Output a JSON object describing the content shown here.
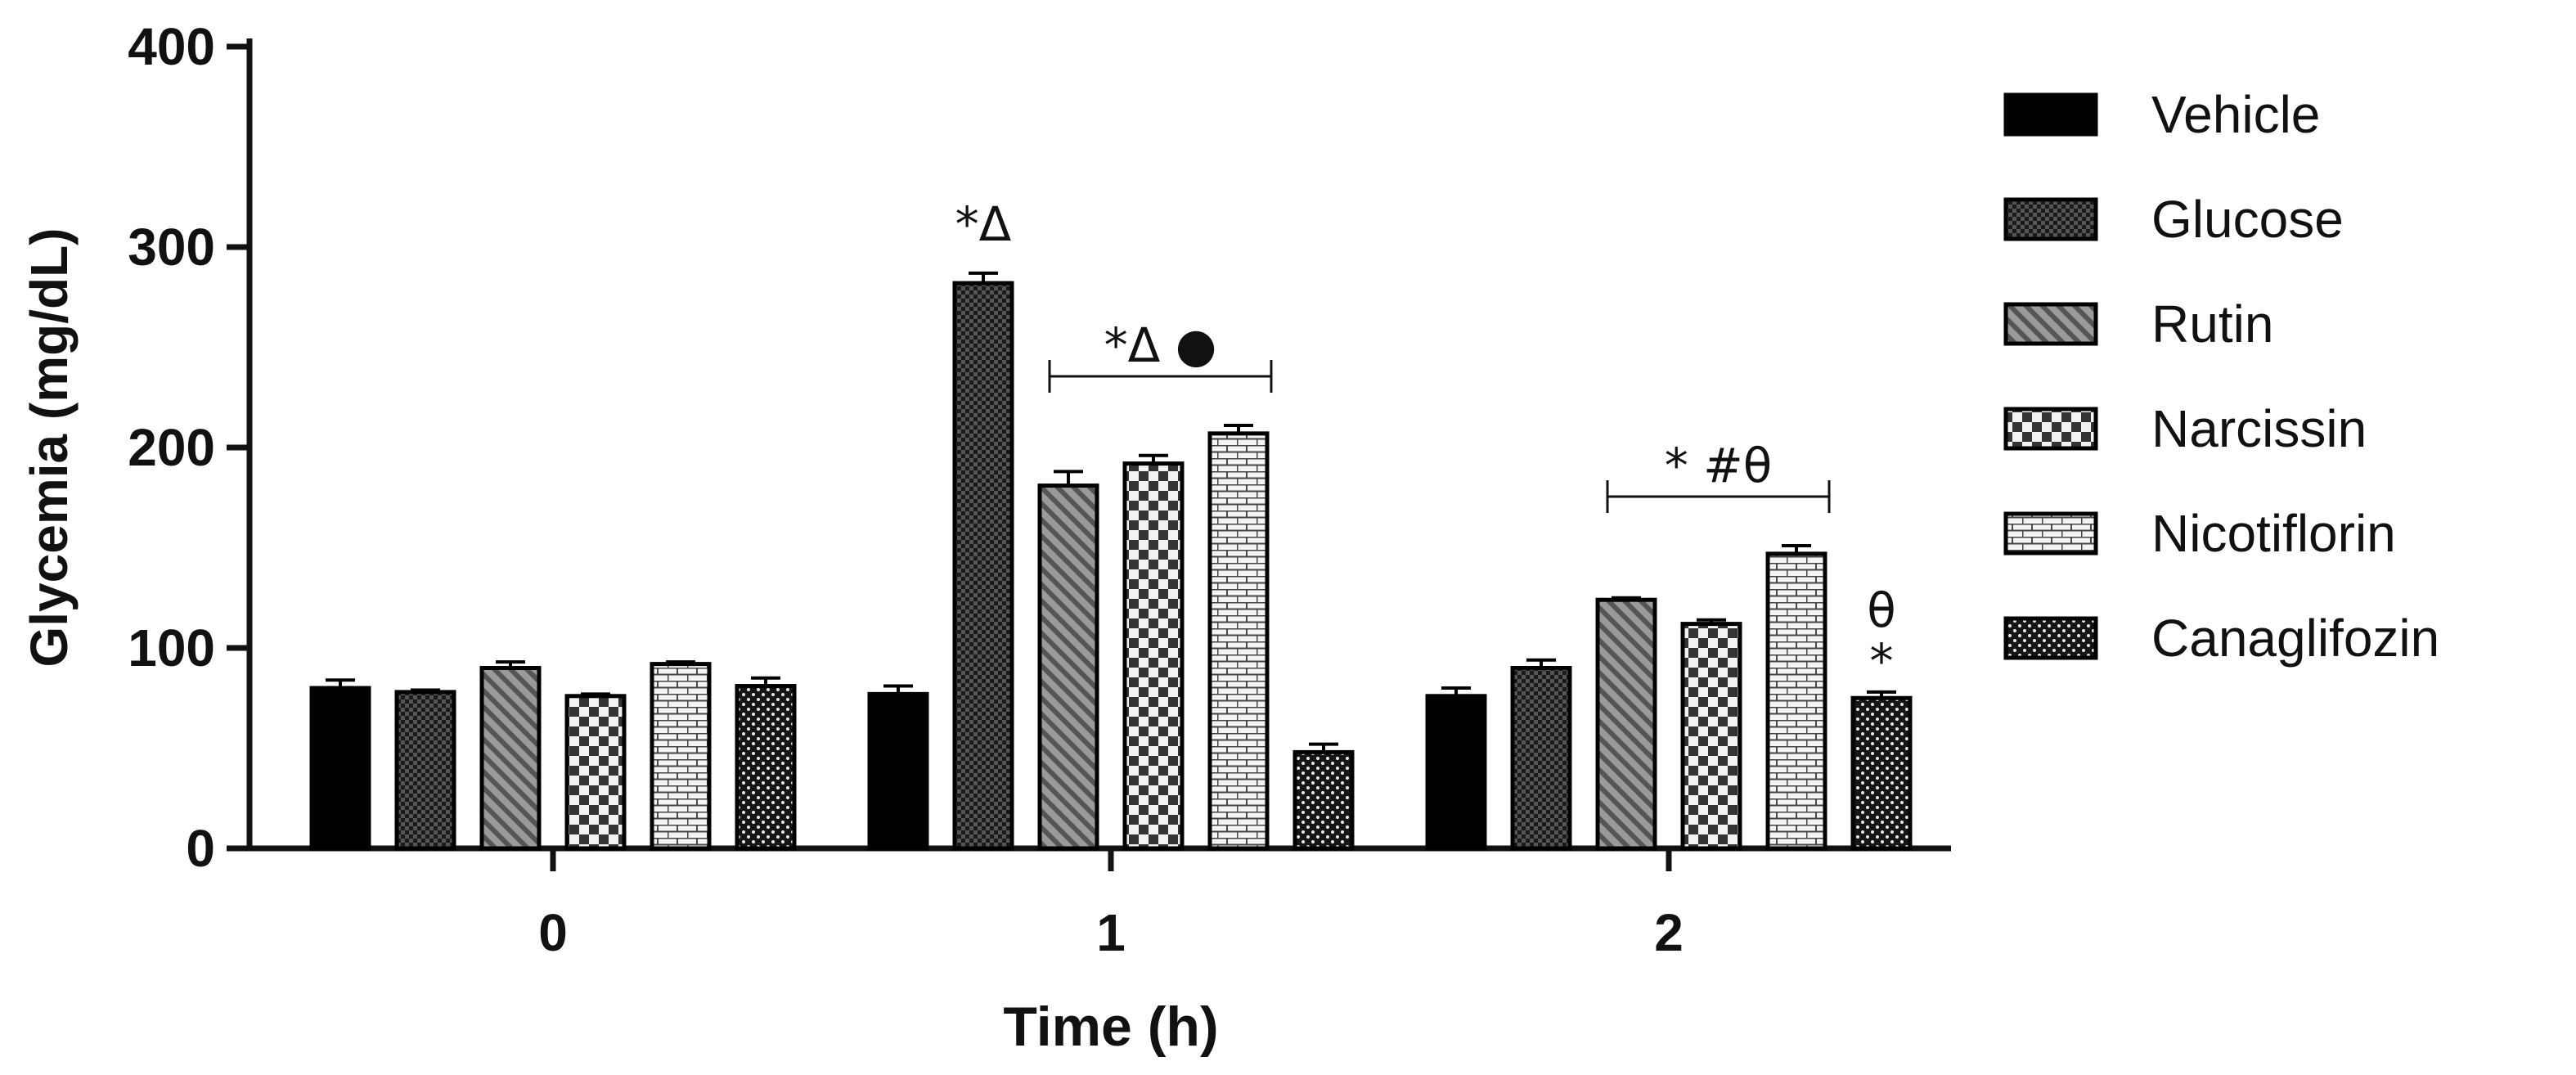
{
  "chart_data": {
    "type": "bar",
    "xlabel": "Time (h)",
    "ylabel": "Glycemia (mg/dL)",
    "ylim": [
      0,
      400
    ],
    "yticks": [
      0,
      100,
      200,
      300,
      400
    ],
    "ytick_labels": [
      "0",
      "100",
      "200",
      "300",
      "400"
    ],
    "categories": [
      "0",
      "1",
      "2"
    ],
    "series": [
      {
        "name": "Vehicle",
        "pattern": "solid",
        "values": [
          80,
          77,
          76
        ],
        "errors": [
          4,
          4,
          4
        ]
      },
      {
        "name": "Glucose",
        "pattern": "dense-checker",
        "values": [
          78,
          282,
          90
        ],
        "errors": [
          1,
          5,
          4
        ]
      },
      {
        "name": "Rutin",
        "pattern": "diagonal",
        "values": [
          90,
          181,
          124
        ],
        "errors": [
          3,
          7,
          1
        ]
      },
      {
        "name": "Narcissin",
        "pattern": "checker",
        "values": [
          76,
          192,
          112
        ],
        "errors": [
          1,
          4,
          2
        ]
      },
      {
        "name": "Nicotiflorin",
        "pattern": "brick",
        "values": [
          92,
          207,
          147
        ],
        "errors": [
          1,
          4,
          4
        ]
      },
      {
        "name": "Canaglifozin",
        "pattern": "dots",
        "values": [
          81,
          48,
          75
        ],
        "errors": [
          4,
          4,
          3
        ]
      }
    ],
    "legend_position": "right",
    "grid": false,
    "annotations": [
      {
        "text": "*Δ",
        "x_category": "1",
        "series": "Glucose",
        "type": "label"
      },
      {
        "text": "*Δ ●",
        "x_category": "1",
        "from_series": "Rutin",
        "to_series": "Nicotiflorin",
        "type": "bracket"
      },
      {
        "text": "* #θ",
        "x_category": "2",
        "from_series": "Rutin",
        "to_series": "Nicotiflorin",
        "type": "bracket"
      },
      {
        "text": "θ",
        "x_category": "2",
        "series": "Canaglifozin",
        "type": "label"
      },
      {
        "text": "*",
        "x_category": "2",
        "series": "Canaglifozin",
        "type": "label"
      }
    ]
  }
}
